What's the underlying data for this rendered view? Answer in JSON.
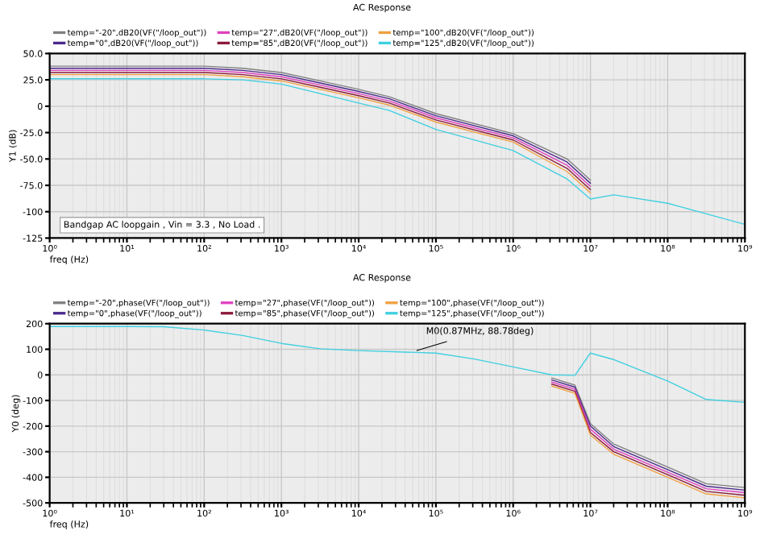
{
  "chart_data": [
    {
      "type": "line",
      "title": "AC Response",
      "xlabel": "freq (Hz)",
      "ylabel": "Y1 (dB)",
      "log": "x",
      "grid": true,
      "legend": "top",
      "marker": "none",
      "line_style": "solid",
      "x": [
        1,
        10,
        100,
        316,
        1000,
        3162,
        10000,
        25000,
        100000,
        1000000,
        5000000,
        10000000,
        20000000,
        100000000,
        1000000000
      ],
      "series": [
        {
          "name": "temp=\"-20\",dB20(VF(\"/loop_out\"))",
          "color": "#808080",
          "values": [
            38,
            38,
            38,
            36,
            32,
            24,
            16,
            9,
            -7,
            -26,
            -50,
            -70,
            null,
            null,
            null
          ]
        },
        {
          "name": "temp=\"0\",dB20(VF(\"/loop_out\"))",
          "color": "#4b2a8c",
          "values": [
            36,
            36,
            36,
            34,
            30,
            22,
            14,
            7,
            -9,
            -28,
            -53,
            -73,
            null,
            null,
            null
          ]
        },
        {
          "name": "temp=\"27\",dB20(VF(\"/loop_out\"))",
          "color": "#e040c0",
          "values": [
            34,
            34,
            34,
            32,
            28,
            20,
            12,
            5,
            -11,
            -30,
            -56,
            -76,
            null,
            null,
            null
          ]
        },
        {
          "name": "temp=\"85\",dB20(VF(\"/loop_out\"))",
          "color": "#8b1a3a",
          "values": [
            32,
            32,
            32,
            30,
            26,
            18,
            10,
            3,
            -13,
            -32,
            -59,
            -79,
            null,
            null,
            null
          ]
        },
        {
          "name": "temp=\"100\",dB20(VF(\"/loop_out\"))",
          "color": "#f0a040",
          "values": [
            30,
            30,
            30,
            28,
            24,
            16,
            8,
            1,
            -15,
            -34,
            -62,
            -82,
            null,
            null,
            null
          ]
        },
        {
          "name": "temp=\"125\",dB20(VF(\"/loop_out\"))",
          "color": "#40d0e0",
          "values": [
            26,
            26,
            26,
            25,
            21,
            12,
            3,
            -4,
            -22,
            -42,
            -69,
            -88,
            -84,
            -92,
            -112
          ]
        }
      ],
      "xlim": [
        1,
        1000000000
      ],
      "xticks": [
        {
          "value": 1,
          "label": "10⁰"
        },
        {
          "value": 10,
          "label": "10¹"
        },
        {
          "value": 100,
          "label": "10²"
        },
        {
          "value": 1000,
          "label": "10³"
        },
        {
          "value": 10000,
          "label": "10⁴"
        },
        {
          "value": 100000,
          "label": "10⁵"
        },
        {
          "value": 1000000,
          "label": "10⁶"
        },
        {
          "value": 10000000,
          "label": "10⁷"
        },
        {
          "value": 100000000,
          "label": "10⁸"
        },
        {
          "value": 1000000000,
          "label": "10⁹"
        }
      ],
      "ylim": [
        -125,
        50
      ],
      "yticks": [
        {
          "value": -125,
          "label": "-125"
        },
        {
          "value": -100,
          "label": "-100"
        },
        {
          "value": -75,
          "label": "-75.0"
        },
        {
          "value": -50,
          "label": "-50.0"
        },
        {
          "value": -25,
          "label": "-25.0"
        },
        0,
        {
          "value": 25,
          "label": "25.0"
        },
        {
          "value": 50,
          "label": "50.0"
        }
      ],
      "annotations": [
        "Bandgap AC loopgain , Vin = 3.3 , No Load ."
      ]
    },
    {
      "type": "line",
      "title": "AC Response",
      "xlabel": "freq (Hz)",
      "ylabel": "Y0 (deg)",
      "log": "x",
      "grid": true,
      "legend": "top",
      "marker": "none",
      "line_style": "solid",
      "x": [
        1,
        10,
        30,
        100,
        316,
        1000,
        3162,
        10000,
        100000,
        316000,
        1000000,
        3162000,
        6300000,
        10000000,
        20000000,
        100000000,
        316000000,
        1000000000
      ],
      "series": [
        {
          "name": "temp=\"-20\",phase(VF(\"/loop_out\"))",
          "color": "#808080",
          "values": [
            null,
            null,
            null,
            null,
            null,
            null,
            null,
            null,
            null,
            null,
            null,
            -12,
            -40,
            -190,
            -270,
            -360,
            -425,
            -440
          ]
        },
        {
          "name": "temp=\"0\",phase(VF(\"/loop_out\"))",
          "color": "#4b2a8c",
          "values": [
            null,
            null,
            null,
            null,
            null,
            null,
            null,
            null,
            null,
            null,
            null,
            -20,
            -48,
            -200,
            -280,
            -370,
            -435,
            -450
          ]
        },
        {
          "name": "temp=\"27\",phase(VF(\"/loop_out\"))",
          "color": "#e040c0",
          "values": [
            null,
            null,
            null,
            null,
            null,
            null,
            null,
            null,
            null,
            null,
            null,
            -28,
            -56,
            -212,
            -290,
            -380,
            -445,
            -460
          ]
        },
        {
          "name": "temp=\"85\",phase(VF(\"/loop_out\"))",
          "color": "#8b1a3a",
          "values": [
            null,
            null,
            null,
            null,
            null,
            null,
            null,
            null,
            null,
            null,
            null,
            -36,
            -64,
            -225,
            -300,
            -390,
            -455,
            -470
          ]
        },
        {
          "name": "temp=\"100\",phase(VF(\"/loop_out\"))",
          "color": "#f0a040",
          "values": [
            null,
            null,
            null,
            null,
            null,
            null,
            null,
            null,
            null,
            null,
            null,
            -44,
            -72,
            -235,
            -310,
            -400,
            -465,
            -480
          ]
        },
        {
          "name": "temp=\"125\",phase(VF(\"/loop_out\"))",
          "color": "#40d0e0",
          "values": [
            189,
            189,
            188,
            175,
            154,
            123,
            102,
            95,
            85,
            62,
            31,
            0,
            -2,
            85,
            60,
            -24,
            -96,
            -107
          ]
        }
      ],
      "xlim": [
        1,
        1000000000
      ],
      "xticks": [
        {
          "value": 1,
          "label": "10⁰"
        },
        {
          "value": 10,
          "label": "10¹"
        },
        {
          "value": 100,
          "label": "10²"
        },
        {
          "value": 1000,
          "label": "10³"
        },
        {
          "value": 10000,
          "label": "10⁴"
        },
        {
          "value": 100000,
          "label": "10⁵"
        },
        {
          "value": 1000000,
          "label": "10⁶"
        },
        {
          "value": 10000000,
          "label": "10⁷"
        },
        {
          "value": 100000000,
          "label": "10⁸"
        },
        {
          "value": 1000000000,
          "label": "10⁹"
        }
      ],
      "ylim": [
        -500,
        200
      ],
      "yticks": [
        -500,
        -400,
        -300,
        -200,
        -100,
        0,
        100,
        200
      ],
      "annotations": [
        {
          "text": "M0(0.87MHz, 88.78deg)",
          "x": 50000,
          "y": 90
        }
      ]
    }
  ]
}
